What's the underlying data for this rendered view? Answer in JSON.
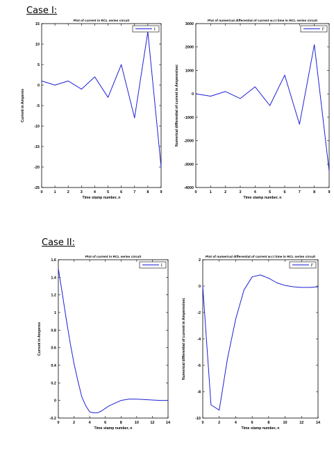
{
  "sections": [
    {
      "heading": "Case I:"
    },
    {
      "heading": "Case II:"
    }
  ],
  "chart_data": [
    {
      "type": "line",
      "title": "Plot of current in RCL series circuit",
      "xlabel": "Time stamp number, n",
      "ylabel": "Current in Amperes",
      "xlim": [
        0,
        9
      ],
      "ylim": [
        -25,
        15
      ],
      "xticks": [
        0,
        1,
        2,
        3,
        4,
        5,
        6,
        7,
        8,
        9
      ],
      "yticks": [
        -25,
        -20,
        -15,
        -10,
        -5,
        0,
        5,
        10,
        15
      ],
      "legend_position": "top-right",
      "grid": false,
      "series": [
        {
          "name": "i",
          "color": "#1f1fd8",
          "x": [
            0,
            1,
            2,
            3,
            4,
            5,
            6,
            7,
            8,
            9
          ],
          "y": [
            1,
            0,
            1,
            -1,
            2,
            -3,
            5,
            -8,
            13,
            -20
          ]
        }
      ]
    },
    {
      "type": "line",
      "title": "Plot of numerical differential of current w.r.t time in RCL series circuit",
      "xlabel": "Time stamp number, n",
      "ylabel": "Numerical differential of current in Amperes/sec",
      "xlim": [
        0,
        9
      ],
      "ylim": [
        -4000,
        3000
      ],
      "xticks": [
        0,
        1,
        2,
        3,
        4,
        5,
        6,
        7,
        8,
        9
      ],
      "yticks": [
        -4000,
        -3000,
        -2000,
        -1000,
        0,
        1000,
        2000,
        3000
      ],
      "legend_position": "top-right",
      "grid": false,
      "series": [
        {
          "name": "i'",
          "color": "#1f1fd8",
          "x": [
            0,
            1,
            2,
            3,
            4,
            5,
            6,
            7,
            8,
            9
          ],
          "y": [
            0,
            -100,
            100,
            -200,
            300,
            -500,
            800,
            -1300,
            2100,
            -3300
          ]
        }
      ]
    },
    {
      "type": "line",
      "title": "Plot of current in RCL series circuit",
      "xlabel": "Time stamp number, n",
      "ylabel": "Current in Amperes",
      "xlim": [
        0,
        14
      ],
      "ylim": [
        -0.2,
        1.6
      ],
      "xticks": [
        0,
        2,
        4,
        6,
        8,
        10,
        12,
        14
      ],
      "yticks": [
        -0.2,
        0,
        0.2,
        0.4,
        0.6,
        0.8,
        1,
        1.2,
        1.4,
        1.6
      ],
      "legend_position": "top-right",
      "grid": false,
      "series": [
        {
          "name": "i",
          "color": "#1f1fd8",
          "x": [
            0,
            0.5,
            1,
            1.5,
            2,
            2.5,
            3,
            3.5,
            4,
            4.5,
            5,
            5.5,
            6,
            6.5,
            7,
            7.5,
            8,
            9,
            10,
            11,
            12,
            13,
            14
          ],
          "y": [
            1.5,
            1.22,
            0.93,
            0.66,
            0.42,
            0.22,
            0.04,
            -0.06,
            -0.13,
            -0.14,
            -0.14,
            -0.12,
            -0.09,
            -0.06,
            -0.04,
            -0.02,
            0,
            0.015,
            0.015,
            0.01,
            0.005,
            0,
            0
          ]
        }
      ]
    },
    {
      "type": "line",
      "title": "Plot of numerical differential of current w.r.t time in RCL series circuit",
      "xlabel": "Time stamp number, n",
      "ylabel": "Numerical differential of current in Amperes/sec",
      "xlim": [
        0,
        14
      ],
      "ylim": [
        -10,
        2
      ],
      "xticks": [
        0,
        2,
        4,
        6,
        8,
        10,
        12,
        14
      ],
      "yticks": [
        -10,
        -8,
        -6,
        -4,
        -2,
        0,
        2
      ],
      "legend_position": "top-right",
      "grid": false,
      "series": [
        {
          "name": "i'",
          "color": "#1f1fd8",
          "x": [
            0,
            1,
            2,
            3,
            4,
            5,
            6,
            7,
            8,
            9,
            10,
            11,
            12,
            13,
            14
          ],
          "y": [
            0,
            -9,
            -9.4,
            -5.5,
            -2.5,
            -0.3,
            0.7,
            0.85,
            0.6,
            0.25,
            0.05,
            -0.05,
            -0.1,
            -0.1,
            -0.05
          ]
        }
      ]
    }
  ]
}
